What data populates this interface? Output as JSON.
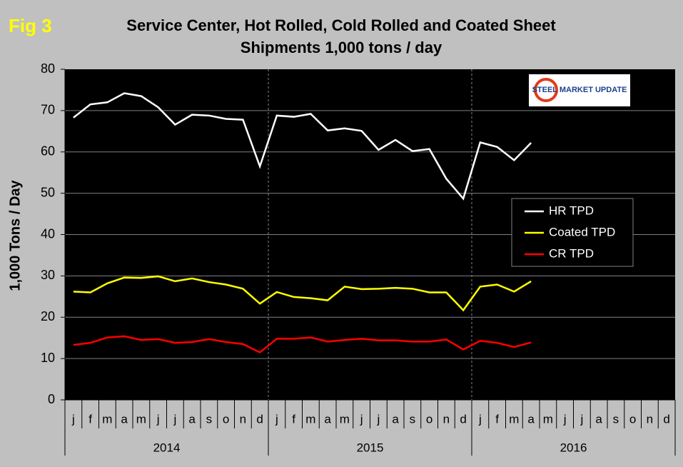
{
  "chart_data": {
    "type": "line",
    "label": "Fig 3",
    "title": [
      "Service Center, Hot Rolled, Cold Rolled and Coated Sheet",
      "Shipments 1,000 tons / day"
    ],
    "logo": "STEEL MARKET UPDATE",
    "y_label": "1,000 Tons / Day",
    "categories": [
      "j",
      "f",
      "m",
      "a",
      "m",
      "j",
      "j",
      "a",
      "s",
      "o",
      "n",
      "d",
      "j",
      "f",
      "m",
      "a",
      "m",
      "j",
      "j",
      "a",
      "s",
      "o",
      "n",
      "d",
      "j",
      "f",
      "m",
      "a",
      "m",
      "j",
      "j",
      "a",
      "s",
      "o",
      "n",
      "d"
    ],
    "groups": [
      "2014",
      "2015",
      "2016"
    ],
    "ylim": [
      0,
      80
    ],
    "yticks": [
      0,
      10,
      20,
      30,
      40,
      50,
      60,
      70,
      80
    ],
    "grid": true,
    "legend": "right",
    "series": [
      {
        "name": "HR TPD",
        "color": "#ffffff",
        "values": [
          68.3,
          71.5,
          72,
          74.2,
          73.5,
          70.8,
          66.6,
          69,
          68.8,
          68,
          67.8,
          56.5,
          68.8,
          68.5,
          69.2,
          65.2,
          65.7,
          65.1,
          60.5,
          62.9,
          60.2,
          60.7,
          53.5,
          48.7,
          62.3,
          61.2,
          58,
          62.2,
          null,
          null,
          null,
          null,
          null,
          null,
          null,
          null
        ]
      },
      {
        "name": "Coated TPD",
        "color": "#ffff00",
        "values": [
          26.2,
          26,
          28.2,
          29.6,
          29.5,
          29.9,
          28.7,
          29.4,
          28.5,
          27.9,
          26.9,
          23.3,
          26.1,
          24.9,
          24.6,
          24.1,
          27.4,
          26.8,
          26.9,
          27.1,
          26.9,
          26,
          26,
          21.7,
          27.4,
          27.9,
          26.2,
          28.7,
          null,
          null,
          null,
          null,
          null,
          null,
          null,
          null
        ]
      },
      {
        "name": "CR TPD",
        "color": "#ff0000",
        "values": [
          13.3,
          13.8,
          15.1,
          15.4,
          14.5,
          14.7,
          13.8,
          14,
          14.7,
          14,
          13.5,
          11.5,
          14.8,
          14.8,
          15.1,
          14.1,
          14.5,
          14.8,
          14.4,
          14.4,
          14.1,
          14.1,
          14.6,
          12.2,
          14.3,
          13.8,
          12.8,
          13.9,
          null,
          null,
          null,
          null,
          null,
          null,
          null,
          null
        ]
      }
    ]
  }
}
